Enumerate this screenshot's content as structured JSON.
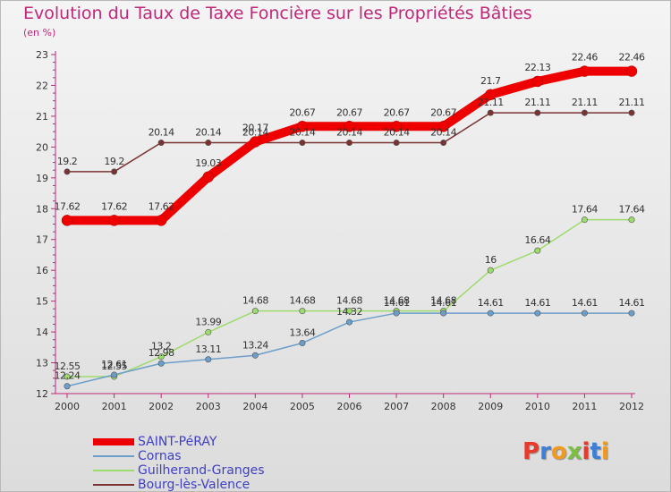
{
  "header": {
    "title": "Evolution du Taux de Taxe Foncière sur les Propriétés Bâties",
    "subtitle": "(en %)"
  },
  "logo": {
    "text": "Proxiti",
    "colors": [
      "#e8392a",
      "#3d7fd6",
      "#f29a1f",
      "#7bc043",
      "#e8392a",
      "#3d7fd6",
      "#f29a1f"
    ]
  },
  "chart_data": {
    "type": "line",
    "categories": [
      "2000",
      "2001",
      "2002",
      "2003",
      "2004",
      "2005",
      "2006",
      "2007",
      "2008",
      "2009",
      "2010",
      "2011",
      "2012"
    ],
    "ylim": [
      12,
      23
    ],
    "yticks": [
      12,
      13,
      14,
      15,
      16,
      17,
      18,
      19,
      20,
      21,
      22,
      23
    ],
    "grid": false,
    "legend_position": "bottom-left",
    "series": [
      {
        "name": "SAINT-PéRAY",
        "color": "#ee0000",
        "values": [
          17.62,
          17.62,
          17.62,
          19.03,
          20.17,
          20.67,
          20.67,
          20.67,
          20.67,
          21.7,
          22.13,
          22.46,
          22.46
        ],
        "labels": [
          "17.62",
          "17.62",
          "17.62",
          "19.03",
          "20.17",
          "20.67",
          "20.67",
          "20.67",
          "20.67",
          "21.7",
          "22.13",
          "22.46",
          "22.46"
        ]
      },
      {
        "name": "Cornas",
        "color": "#6d9ec9",
        "values": [
          12.24,
          12.61,
          12.98,
          13.11,
          13.24,
          13.64,
          14.32,
          14.61,
          14.61,
          14.61,
          14.61,
          14.61,
          14.61
        ],
        "labels": [
          "12.24",
          "12.61",
          "12.98",
          "13.11",
          "13.24",
          "13.64",
          "14.32",
          "14.61",
          "14.61",
          "14.61",
          "14.61",
          "14.61",
          "14.61"
        ]
      },
      {
        "name": "Guilherand-Granges",
        "color": "#9edb6e",
        "values": [
          12.55,
          12.55,
          13.2,
          13.99,
          14.68,
          14.68,
          14.68,
          14.68,
          14.68,
          16,
          16.64,
          17.64,
          17.64
        ],
        "labels": [
          "12.55",
          "12.55",
          "13.2",
          "13.99",
          "14.68",
          "14.68",
          "14.68",
          "14.68",
          "14.68",
          "16",
          "16.64",
          "17.64",
          "17.64"
        ]
      },
      {
        "name": "Bourg-lès-Valence",
        "color": "#7a3333",
        "values": [
          19.2,
          19.2,
          20.14,
          20.14,
          20.14,
          20.14,
          20.14,
          20.14,
          20.14,
          21.11,
          21.11,
          21.11,
          21.11
        ],
        "labels": [
          "19.2",
          "19.2",
          "20.14",
          "20.14",
          "20.14",
          "20.14",
          "20.14",
          "20.14",
          "20.14",
          "21.11",
          "21.11",
          "21.11",
          "21.11"
        ]
      }
    ]
  }
}
